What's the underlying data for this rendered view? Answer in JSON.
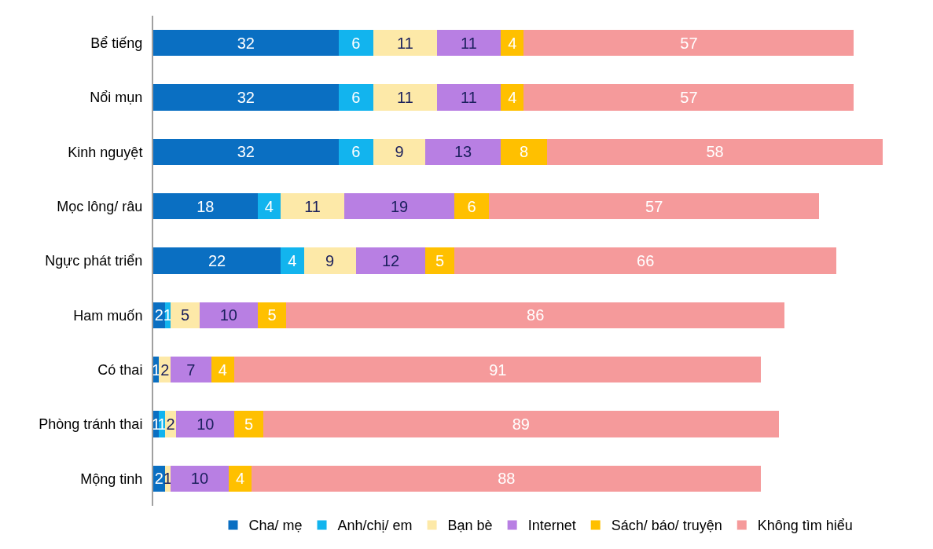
{
  "chart_data": {
    "type": "bar",
    "orientation": "horizontal",
    "stacked": true,
    "data_labels": true,
    "legend": "bottom",
    "categories": [
      "Bể tiếng",
      "Nổi mụn",
      "Kinh nguyệt",
      "Mọc lông/ râu",
      "Ngực phát triển",
      "Ham muốn",
      "Có thai",
      "Phòng tránh thai",
      "Mộng tinh"
    ],
    "series": [
      {
        "name": "Cha/ mẹ",
        "color": "#0a6fc2",
        "values": [
          32,
          32,
          32,
          18,
          22,
          2,
          1,
          1,
          2
        ]
      },
      {
        "name": "Anh/chị/ em",
        "color": "#12b4ee",
        "values": [
          6,
          6,
          6,
          4,
          4,
          1,
          0,
          1,
          0
        ],
        "value_labels": [
          "6",
          "6",
          "6",
          "4",
          "4",
          "1",
          null,
          "1",
          null
        ]
      },
      {
        "name": "Bạn bè",
        "color": "#fde9a8",
        "values": [
          11,
          11,
          9,
          11,
          9,
          5,
          2,
          2,
          1
        ]
      },
      {
        "name": "Internet",
        "color": "#b87fe3",
        "values": [
          11,
          11,
          13,
          19,
          12,
          10,
          7,
          10,
          10
        ]
      },
      {
        "name": "Sách/ báo/ truyện",
        "color": "#ffc000",
        "values": [
          4,
          4,
          8,
          6,
          5,
          5,
          4,
          5,
          4
        ]
      },
      {
        "name": "Không tìm hiểu",
        "color": "#f59a9b",
        "values": [
          57,
          57,
          58,
          57,
          66,
          86,
          91,
          89,
          88
        ]
      }
    ]
  }
}
